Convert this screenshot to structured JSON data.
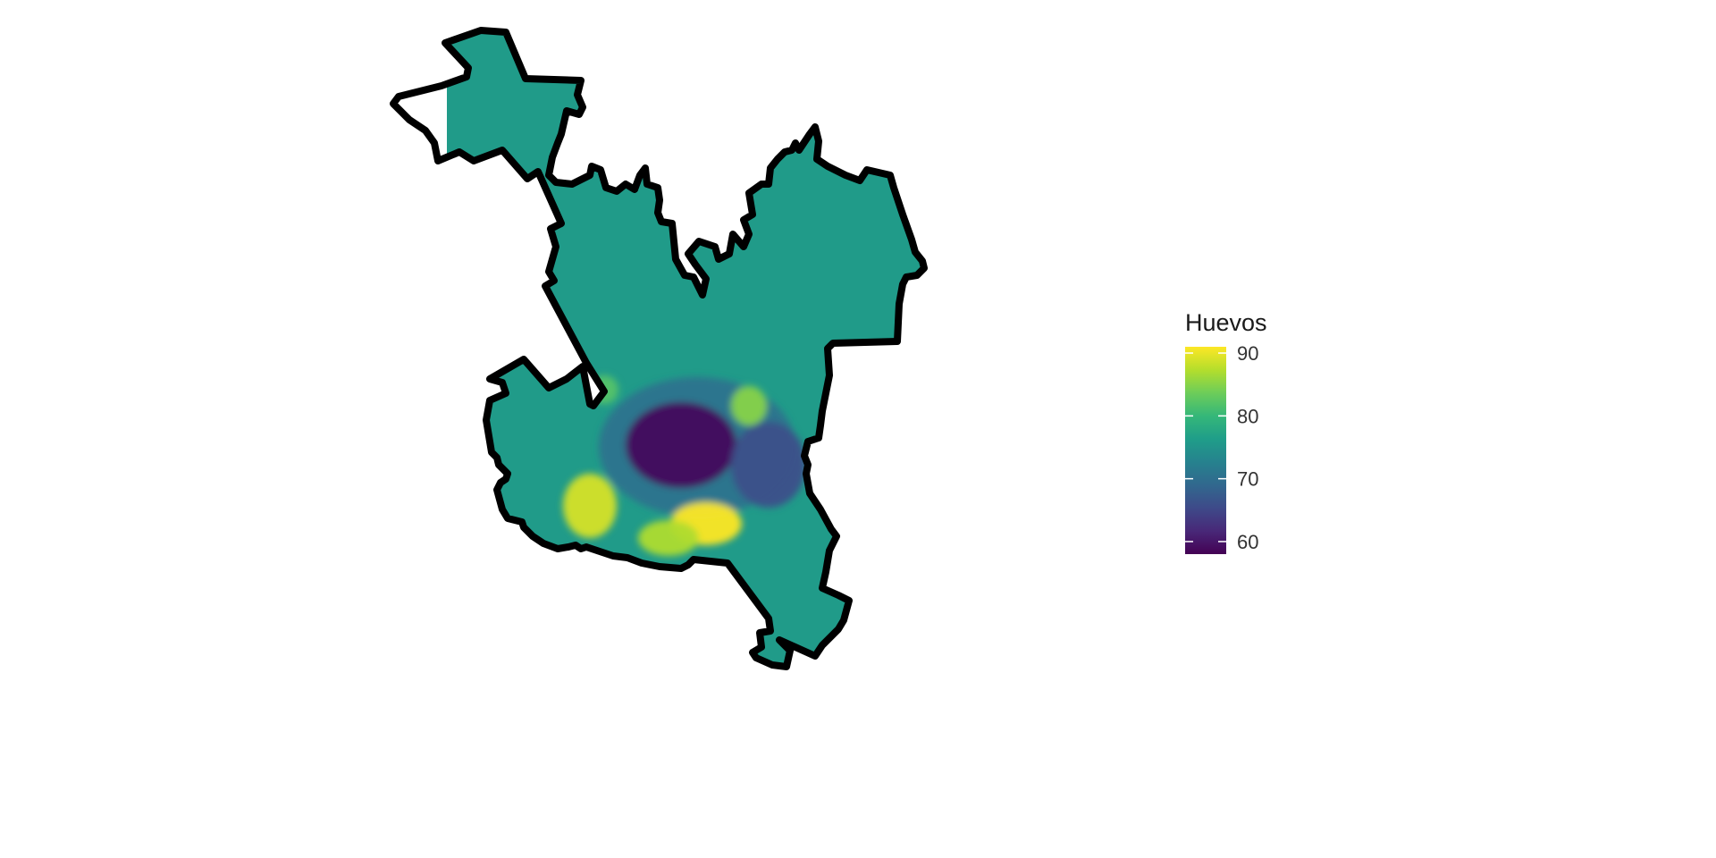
{
  "chart_data": {
    "type": "heatmap",
    "title": "",
    "xlabel": "",
    "ylabel": "",
    "grid": false,
    "legend_position": "right",
    "fill_variable": "Huevos",
    "colormap": "viridis",
    "value_range": [
      58,
      91
    ],
    "legend": {
      "title": "Huevos",
      "ticks": [
        {
          "value": 60,
          "label": "60"
        },
        {
          "value": 70,
          "label": "70"
        },
        {
          "value": 80,
          "label": "80"
        },
        {
          "value": 90,
          "label": "90"
        }
      ]
    },
    "baseline_value": 76,
    "surface_features": [
      {
        "kind": "low",
        "location": "center",
        "value": 59
      },
      {
        "kind": "low",
        "location": "center-east",
        "value": 66
      },
      {
        "kind": "high",
        "location": "south-center",
        "value": 91
      },
      {
        "kind": "high",
        "location": "southwest",
        "value": 89
      },
      {
        "kind": "high",
        "location": "south",
        "value": 87
      },
      {
        "kind": "high",
        "location": "east-center",
        "value": 85
      },
      {
        "kind": "high",
        "location": "west-center",
        "value": 82
      }
    ]
  },
  "colors": {
    "viridis_stops": [
      "#440154",
      "#482878",
      "#3e4a89",
      "#31688e",
      "#26828e",
      "#1f9e89",
      "#35b779",
      "#6dcd59",
      "#b4de2c",
      "#fde725"
    ],
    "boundary": "#000000",
    "background": "#ffffff"
  }
}
